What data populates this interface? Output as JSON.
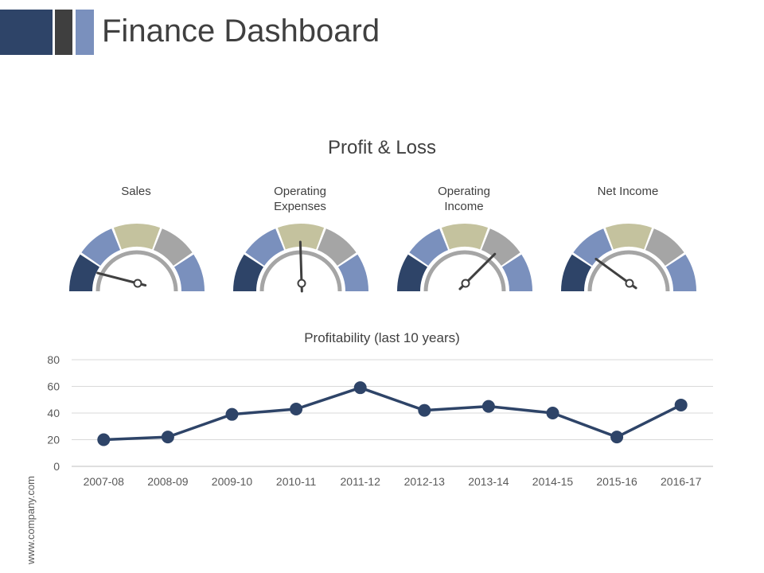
{
  "header": {
    "title": "Finance Dashboard",
    "accent_colors": [
      "#2e4468",
      "#3f3f3f",
      "#7a90bd"
    ]
  },
  "section": {
    "title": "Profit & Loss"
  },
  "gauges": [
    {
      "label_lines": [
        "Sales"
      ],
      "needle_value": 0.08
    },
    {
      "label_lines": [
        "Operating",
        "Expenses"
      ],
      "needle_value": 0.49
    },
    {
      "label_lines": [
        "Operating",
        "Income"
      ],
      "needle_value": 0.75
    },
    {
      "label_lines": [
        "Net Income"
      ],
      "needle_value": 0.2
    }
  ],
  "gauge_colors": {
    "segments": [
      "#2e4468",
      "#7a90bd",
      "#c4c29e",
      "#a5a5a5",
      "#7a90bd"
    ],
    "inner_ring": "#a5a5a5",
    "needle": "#404040"
  },
  "chart_data": {
    "type": "line",
    "title": "Profitability (last 10 years)",
    "categories": [
      "2007-08",
      "2008-09",
      "2009-10",
      "2010-11",
      "2011-12",
      "2012-13",
      "2013-14",
      "2014-15",
      "2015-16",
      "2016-17"
    ],
    "series": [
      {
        "values": [
          20,
          22,
          39,
          43,
          59,
          42,
          45,
          40,
          22,
          46
        ],
        "color": "#2e4468"
      }
    ],
    "ylim": [
      0,
      80
    ],
    "yticks": [
      0,
      20,
      40,
      60,
      80
    ],
    "grid": true,
    "xlabel": "",
    "ylabel": ""
  },
  "footer": {
    "watermark": "www.company.com"
  }
}
